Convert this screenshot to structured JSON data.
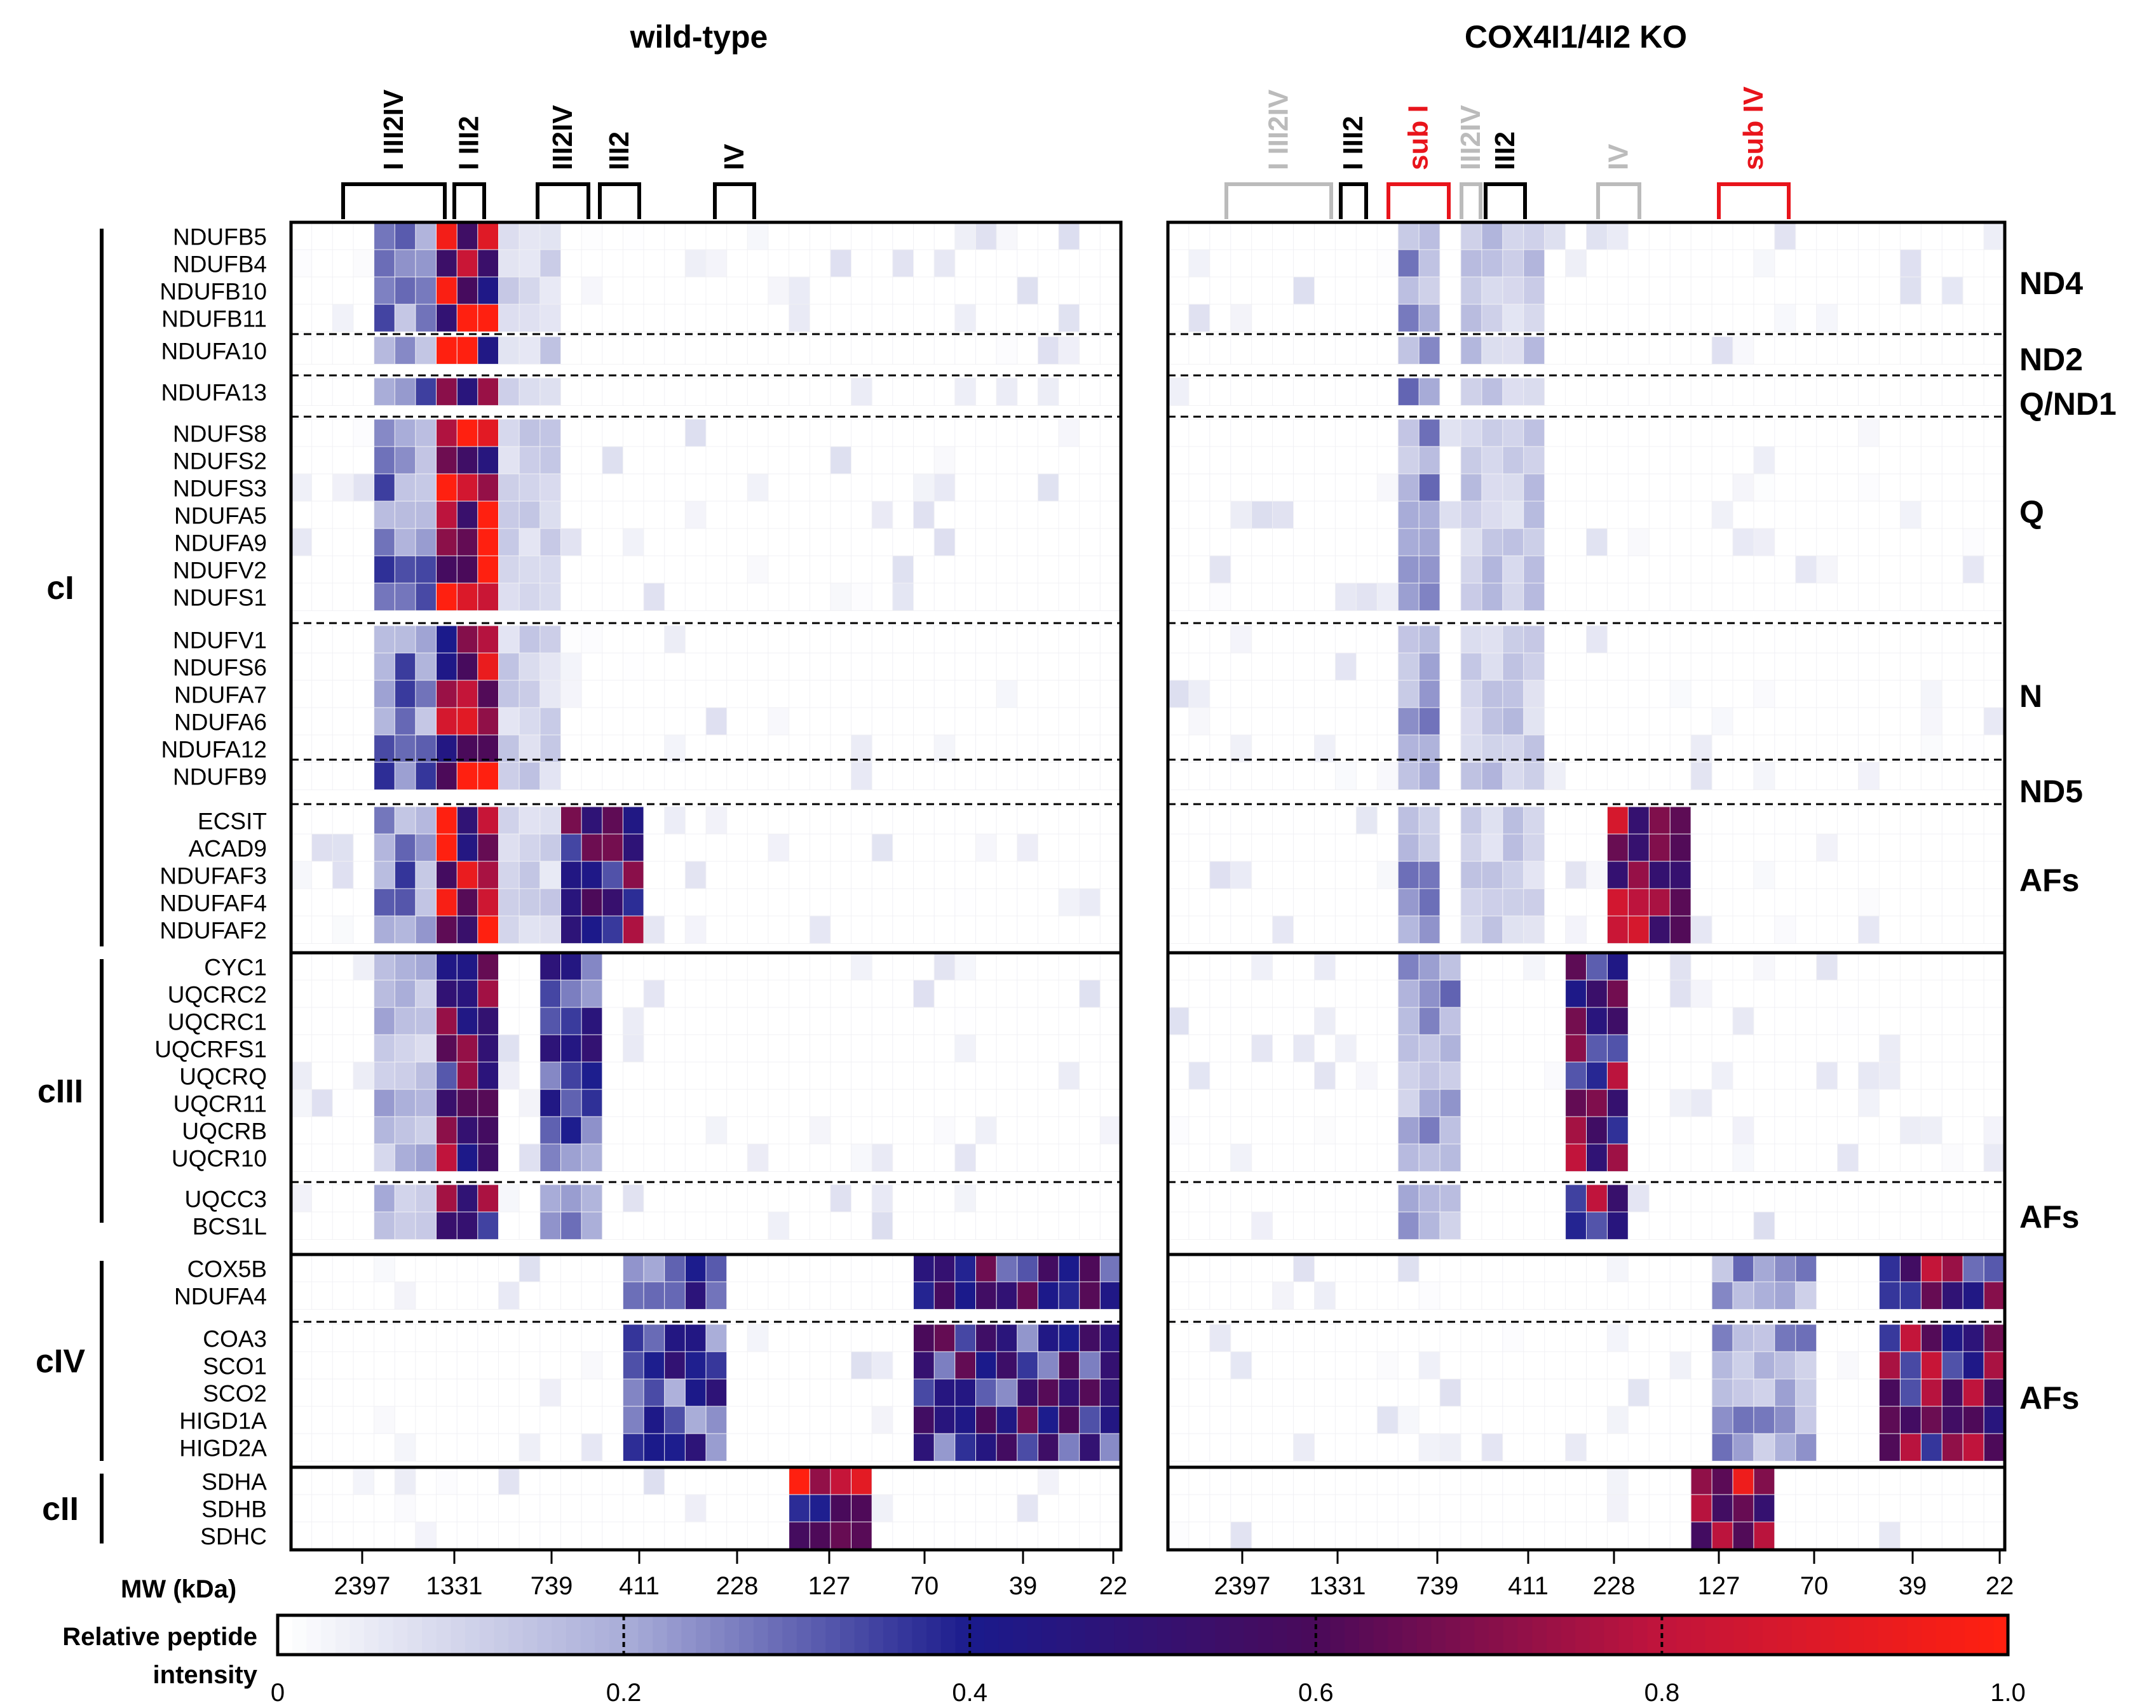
{
  "chart_data": {
    "type": "heatmap",
    "panels": [
      {
        "title": "wild-type",
        "complex_labels": [
          {
            "text": "I III2IV",
            "color": "#000000"
          },
          {
            "text": "I III2",
            "color": "#000000"
          },
          {
            "text": "III2IV",
            "color": "#000000"
          },
          {
            "text": "III2",
            "color": "#000000"
          },
          {
            "text": "IV",
            "color": "#000000"
          }
        ]
      },
      {
        "title": "COX4I1/4I2 KO",
        "complex_labels": [
          {
            "text": "I III2IV",
            "color": "#bbbbbb"
          },
          {
            "text": "I III2",
            "color": "#000000"
          },
          {
            "text": "sub I",
            "color": "#e8141b"
          },
          {
            "text": "III2IV",
            "color": "#bbbbbb"
          },
          {
            "text": "III2",
            "color": "#000000"
          },
          {
            "text": "IV",
            "color": "#bbbbbb"
          },
          {
            "text": "sub IV",
            "color": "#e8141b"
          }
        ]
      }
    ],
    "x_axis": {
      "label": "MW (kDa)",
      "ticks": [
        "2397",
        "1331",
        "739",
        "411",
        "228",
        "127",
        "70",
        "39",
        "22"
      ]
    },
    "rows": [
      {
        "name": "NDUFB5",
        "complex": "cI",
        "module": "ND4"
      },
      {
        "name": "NDUFB4",
        "complex": "cI",
        "module": "ND4"
      },
      {
        "name": "NDUFB10",
        "complex": "cI",
        "module": "ND4"
      },
      {
        "name": "NDUFB11",
        "complex": "cI",
        "module": "ND4"
      },
      {
        "name": "NDUFA10",
        "complex": "cI",
        "module": "ND2"
      },
      {
        "name": "NDUFA13",
        "complex": "cI",
        "module": "Q/ND1"
      },
      {
        "name": "NDUFS8",
        "complex": "cI",
        "module": "Q"
      },
      {
        "name": "NDUFS2",
        "complex": "cI",
        "module": "Q"
      },
      {
        "name": "NDUFS3",
        "complex": "cI",
        "module": "Q"
      },
      {
        "name": "NDUFA5",
        "complex": "cI",
        "module": "Q"
      },
      {
        "name": "NDUFA9",
        "complex": "cI",
        "module": "Q"
      },
      {
        "name": "NDUFV2",
        "complex": "cI",
        "module": "Q"
      },
      {
        "name": "NDUFS1",
        "complex": "cI",
        "module": "Q"
      },
      {
        "name": "NDUFV1",
        "complex": "cI",
        "module": "N"
      },
      {
        "name": "NDUFS6",
        "complex": "cI",
        "module": "N"
      },
      {
        "name": "NDUFA7",
        "complex": "cI",
        "module": "N"
      },
      {
        "name": "NDUFA6",
        "complex": "cI",
        "module": "N"
      },
      {
        "name": "NDUFA12",
        "complex": "cI",
        "module": "N"
      },
      {
        "name": "NDUFB9",
        "complex": "cI",
        "module": "ND5"
      },
      {
        "name": "ECSIT",
        "complex": "cI",
        "module": "AFs"
      },
      {
        "name": "ACAD9",
        "complex": "cI",
        "module": "AFs"
      },
      {
        "name": "NDUFAF3",
        "complex": "cI",
        "module": "AFs"
      },
      {
        "name": "NDUFAF4",
        "complex": "cI",
        "module": "AFs"
      },
      {
        "name": "NDUFAF2",
        "complex": "cI",
        "module": "AFs"
      },
      {
        "name": "CYC1",
        "complex": "cIII",
        "module": ""
      },
      {
        "name": "UQCRC2",
        "complex": "cIII",
        "module": ""
      },
      {
        "name": "UQCRC1",
        "complex": "cIII",
        "module": ""
      },
      {
        "name": "UQCRFS1",
        "complex": "cIII",
        "module": ""
      },
      {
        "name": "UQCRQ",
        "complex": "cIII",
        "module": ""
      },
      {
        "name": "UQCR11",
        "complex": "cIII",
        "module": ""
      },
      {
        "name": "UQCRB",
        "complex": "cIII",
        "module": ""
      },
      {
        "name": "UQCR10",
        "complex": "cIII",
        "module": ""
      },
      {
        "name": "UQCC3",
        "complex": "cIII",
        "module": "AFs"
      },
      {
        "name": "BCS1L",
        "complex": "cIII",
        "module": "AFs"
      },
      {
        "name": "COX5B",
        "complex": "cIV",
        "module": ""
      },
      {
        "name": "NDUFA4",
        "complex": "cIV",
        "module": ""
      },
      {
        "name": "COA3",
        "complex": "cIV",
        "module": "AFs"
      },
      {
        "name": "SCO1",
        "complex": "cIV",
        "module": "AFs"
      },
      {
        "name": "SCO2",
        "complex": "cIV",
        "module": "AFs"
      },
      {
        "name": "HIGD1A",
        "complex": "cIV",
        "module": "AFs"
      },
      {
        "name": "HIGD2A",
        "complex": "cIV",
        "module": "AFs"
      },
      {
        "name": "SDHA",
        "complex": "cII",
        "module": ""
      },
      {
        "name": "SDHB",
        "complex": "cII",
        "module": ""
      },
      {
        "name": "SDHC",
        "complex": "cII",
        "module": ""
      }
    ],
    "complexes": [
      "cI",
      "cIII",
      "cIV",
      "cII"
    ],
    "modules": [
      "ND4",
      "ND2",
      "Q/ND1",
      "Q",
      "N",
      "ND5",
      "AFs",
      "AFs",
      "AFs"
    ],
    "colorbar": {
      "label": "Relative peptide intensity",
      "ticks": [
        "0",
        "0.2",
        "0.4",
        "0.6",
        "0.8",
        "1.0"
      ],
      "range": [
        0,
        1
      ],
      "colors": [
        "#ffffff",
        "#a8acd8",
        "#1a1a8c",
        "#4a0a5a",
        "#c0143c",
        "#ff2010"
      ]
    },
    "series_note": "cell values 0-1 per fraction (relative peptide intensity)"
  }
}
